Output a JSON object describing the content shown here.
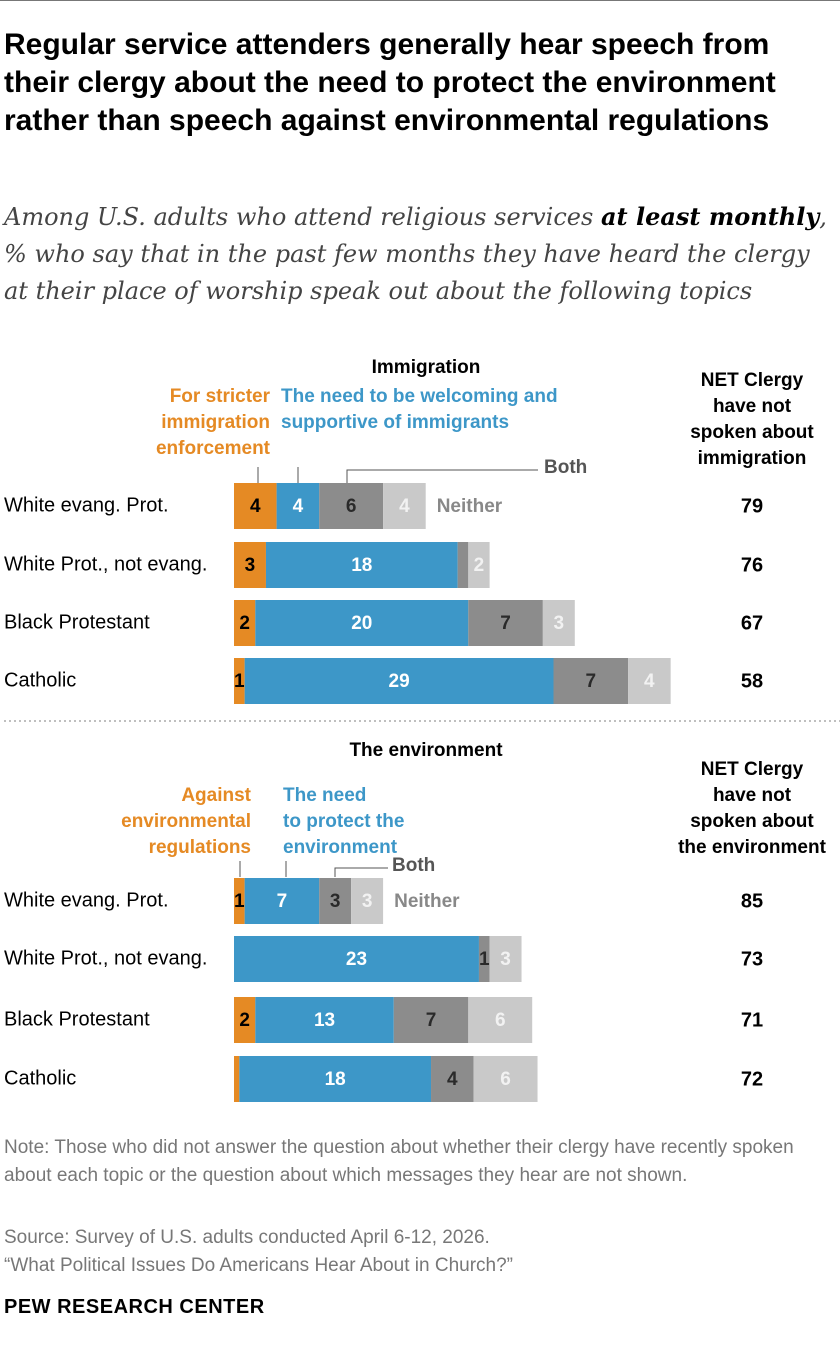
{
  "title": "Regular service attenders generally hear speech from their clergy about the need to protect the environment rather than speech against environmental regulations",
  "subtitle": {
    "part1": "Among U.S. adults who attend religious services ",
    "bold": "at least monthly",
    "part2": ", % who say that in the past few months they have heard the clergy at their place of worship speak out about the following topics"
  },
  "colors": {
    "orange": "#E58A24",
    "blue": "#3D97C8",
    "both": "#8C8C8C",
    "neither": "#C9C9C9",
    "both_label": "#555555",
    "neither_label": "#888888"
  },
  "chart_data": [
    {
      "type": "bar",
      "stacked": true,
      "orientation": "horizontal",
      "title": "Immigration",
      "categories": [
        "White evang. Prot.",
        "White Prot., not evang.",
        "Black Protestant",
        "Catholic"
      ],
      "series": [
        {
          "name": "For stricter immigration enforcement",
          "values": [
            4,
            3,
            2,
            1
          ]
        },
        {
          "name": "The need to be welcoming and supportive of immigrants",
          "values": [
            4,
            18,
            20,
            29
          ]
        },
        {
          "name": "Both",
          "values": [
            6,
            1,
            7,
            7
          ]
        },
        {
          "name": "Neither",
          "values": [
            4,
            2,
            3,
            4
          ]
        }
      ],
      "labels": [
        [
          "4",
          "4",
          "6",
          "4"
        ],
        [
          "3",
          "18",
          "",
          "2"
        ],
        [
          "2",
          "20",
          "7",
          "3"
        ],
        [
          "1",
          "29",
          "7",
          "4"
        ]
      ],
      "net_header": "NET Clergy have not spoken about immigration",
      "net_values": [
        "79",
        "76",
        "67",
        "58"
      ]
    },
    {
      "type": "bar",
      "stacked": true,
      "orientation": "horizontal",
      "title": "The environment",
      "categories": [
        "White evang. Prot.",
        "White Prot., not evang.",
        "Black Protestant",
        "Catholic"
      ],
      "series": [
        {
          "name": "Against environmental regulations",
          "values": [
            1,
            0,
            2,
            0.5
          ]
        },
        {
          "name": "The need to protect the environment",
          "values": [
            7,
            23,
            13,
            18
          ]
        },
        {
          "name": "Both",
          "values": [
            3,
            1,
            7,
            4
          ]
        },
        {
          "name": "Neither",
          "values": [
            3,
            3,
            6,
            6
          ]
        }
      ],
      "labels": [
        [
          "1",
          "7",
          "3",
          "3"
        ],
        [
          "",
          "23",
          "1",
          "3"
        ],
        [
          "2",
          "13",
          "7",
          "6"
        ],
        [
          "",
          "18",
          "4",
          "6"
        ]
      ],
      "net_header": "NET Clergy have not spoken about the environment",
      "net_values": [
        "85",
        "73",
        "71",
        "72"
      ]
    }
  ],
  "notes": {
    "note": "Note: Those who did not answer the question about whether their clergy have recently spoken about each topic or the question about which messages they hear are not shown.",
    "source": "Source: Survey of U.S. adults conducted April 6-12, 2026.",
    "report": "“What Political Issues Do Americans Hear About in Church?”",
    "org": "PEW RESEARCH CENTER"
  }
}
